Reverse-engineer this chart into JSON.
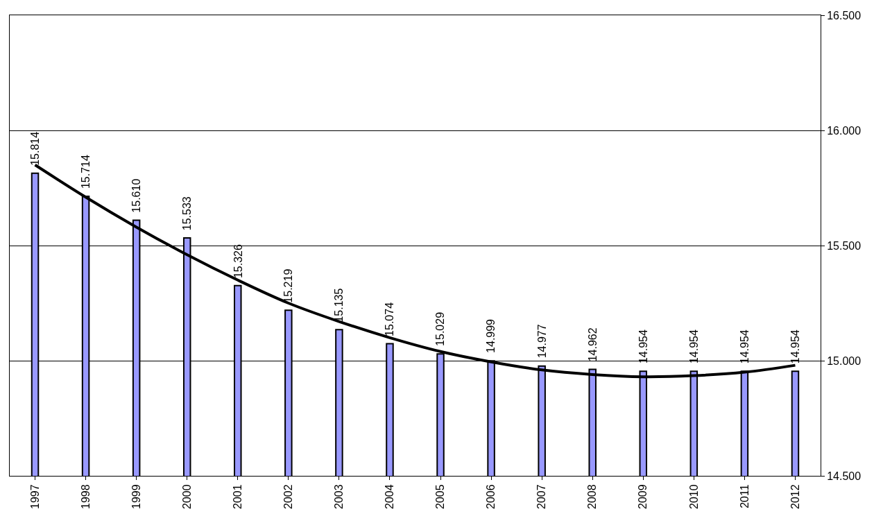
{
  "chart_data": {
    "type": "bar",
    "categories": [
      "1997",
      "1998",
      "1999",
      "2000",
      "2001",
      "2002",
      "2003",
      "2004",
      "2005",
      "2006",
      "2007",
      "2008",
      "2009",
      "2010",
      "2011",
      "2012"
    ],
    "series": [
      {
        "color": "#9999ff",
        "values": [
          15.814,
          15.714,
          15.61,
          15.533,
          15.326,
          15.219,
          15.135,
          15.074,
          15.029,
          14.999,
          14.977,
          14.962,
          14.954,
          14.954,
          14.954,
          14.954
        ],
        "value_labels": [
          "15.814",
          "15.714",
          "15.610",
          "15.533",
          "15.326",
          "15.219",
          "15.135",
          "15.074",
          "15.029",
          "14.999",
          "14.977",
          "14.962",
          "14.954",
          "14.954",
          "14.954",
          "14.954"
        ]
      },
      {
        "type": "line",
        "color": "#000000",
        "values": [
          15.85,
          15.71,
          15.58,
          15.46,
          15.35,
          15.25,
          15.17,
          15.1,
          15.04,
          14.995,
          14.96,
          14.94,
          14.93,
          14.935,
          14.95,
          14.98
        ]
      }
    ],
    "ylim": [
      14.5,
      16.5
    ],
    "yticks": [
      {
        "value": 14.5,
        "label": "14.500"
      },
      {
        "value": 15.0,
        "label": "15.000"
      },
      {
        "value": 15.5,
        "label": "15.500"
      },
      {
        "value": 16.0,
        "label": "16.000"
      },
      {
        "value": 16.5,
        "label": "16.500"
      }
    ],
    "grid": "y"
  }
}
